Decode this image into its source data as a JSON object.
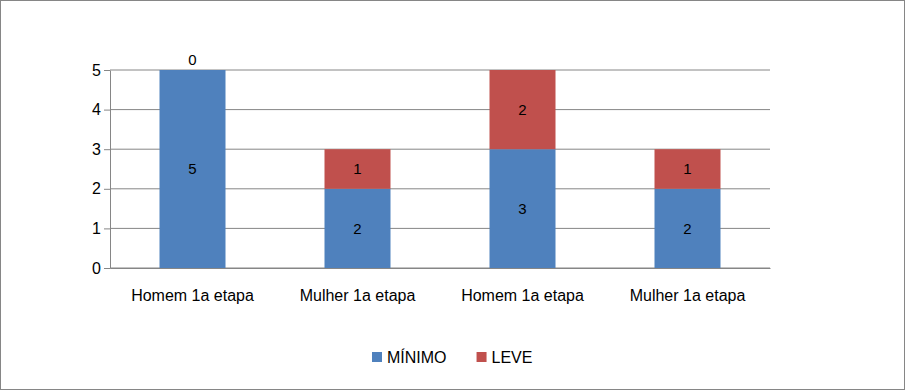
{
  "chart_data": {
    "type": "bar",
    "stacked": true,
    "data_labels": true,
    "grid": true,
    "legend": "bottom",
    "categories": [
      "Homem 1a etapa",
      "Mulher 1a etapa",
      "Homem 1a etapa",
      "Mulher 1a etapa"
    ],
    "series": [
      {
        "name": "MÍNIMO",
        "color": "#4f81bd",
        "values": [
          5,
          2,
          3,
          2
        ]
      },
      {
        "name": "LEVE",
        "color": "#c0504d",
        "values": [
          0,
          1,
          2,
          1
        ]
      }
    ],
    "ylim": [
      0,
      5
    ],
    "yticks": [
      0,
      1,
      2,
      3,
      4,
      5
    ]
  }
}
